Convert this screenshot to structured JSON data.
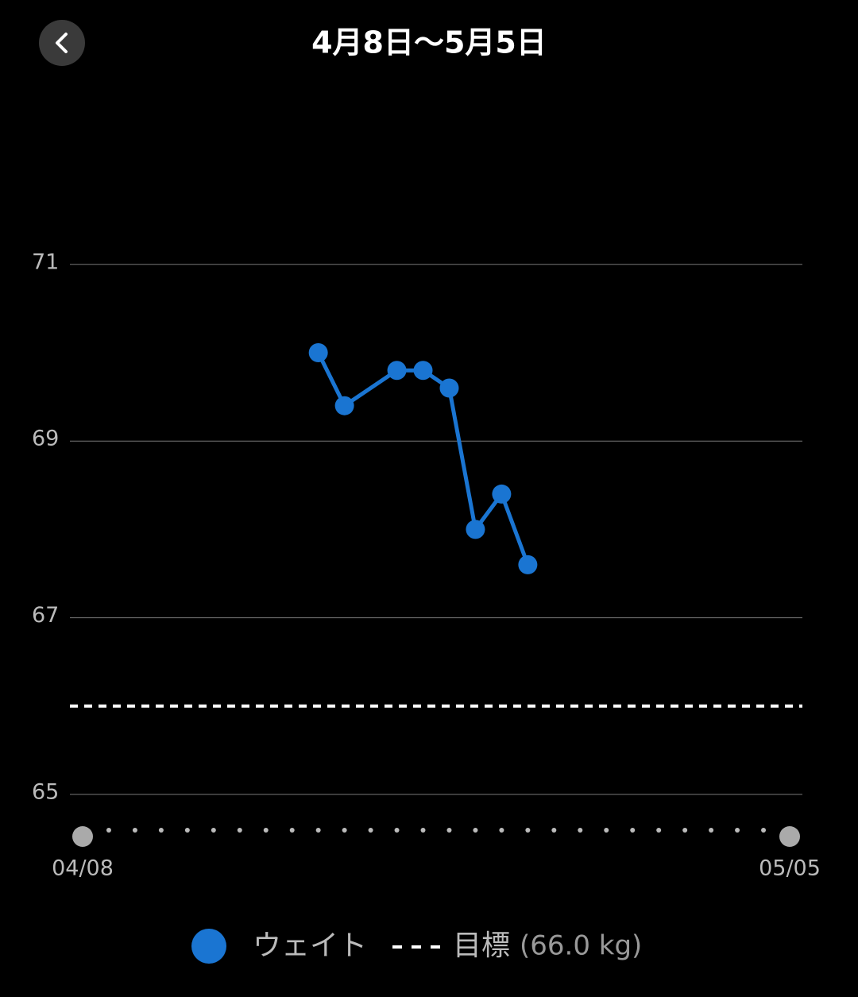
{
  "title": "4月8日～5月5日",
  "chart_data": {
    "type": "line",
    "categories": [
      "04/08",
      null,
      null,
      null,
      null,
      null,
      null,
      null,
      null,
      null,
      null,
      null,
      null,
      null,
      null,
      null,
      null,
      null,
      null,
      null,
      null,
      null,
      null,
      null,
      null,
      null,
      null,
      "05/05"
    ],
    "series": [
      {
        "name": "ウェイト",
        "color": "#1a75d2",
        "values": [
          null,
          null,
          null,
          null,
          null,
          null,
          null,
          null,
          null,
          70.0,
          69.4,
          null,
          69.8,
          69.8,
          69.6,
          68.0,
          68.4,
          67.6,
          null,
          null,
          null,
          null,
          null,
          null,
          null,
          null,
          null,
          null
        ]
      }
    ],
    "goal": {
      "name": "目標",
      "value": 66,
      "label": "(66.0 kg)",
      "color": "#ffffff"
    },
    "ylim": [
      64.5,
      72
    ],
    "yticks": [
      65,
      67,
      69,
      71
    ],
    "grid": true
  }
}
